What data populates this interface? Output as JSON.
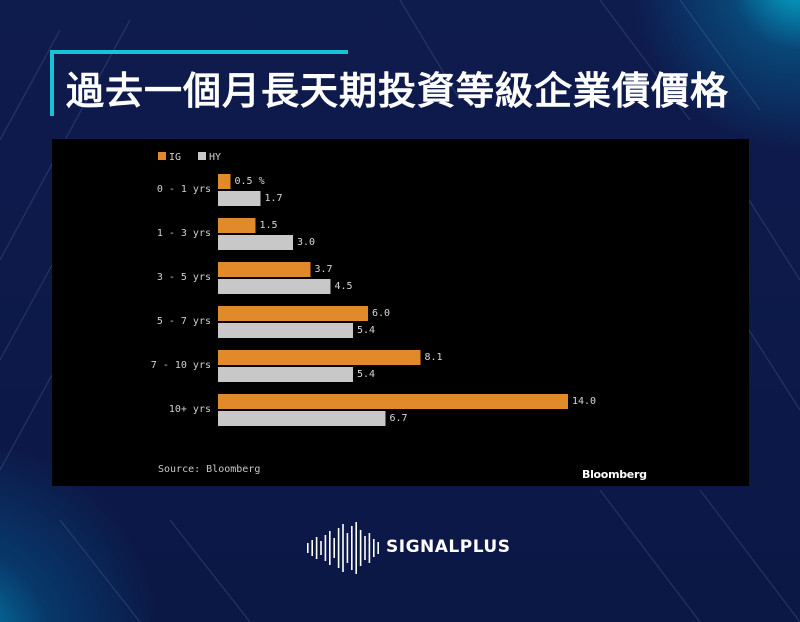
{
  "title": "過去一個月長天期投資等級企業債價格",
  "chart_data": {
    "type": "bar",
    "orientation": "horizontal",
    "categories": [
      "0 - 1 yrs",
      "1 - 3 yrs",
      "3 - 5 yrs",
      "5 - 7 yrs",
      "7 - 10 yrs",
      "10+ yrs"
    ],
    "series": [
      {
        "name": "IG",
        "color": "#e08a2c",
        "values": [
          0.5,
          1.5,
          3.7,
          6.0,
          8.1,
          14.0
        ],
        "labels": [
          "0.5 %",
          "1.5",
          "3.7",
          "6.0",
          "8.1",
          "14.0"
        ]
      },
      {
        "name": "HY",
        "color": "#c8c8c8",
        "values": [
          1.7,
          3.0,
          4.5,
          5.4,
          5.4,
          6.7
        ],
        "labels": [
          "1.7",
          "3.0",
          "4.5",
          "5.4",
          "5.4",
          "6.7"
        ]
      }
    ],
    "xlim": [
      0,
      14.0
    ],
    "grid": false,
    "legend_position": "top-left",
    "source": "Source: Bloomberg",
    "publisher": "Bloomberg"
  },
  "brand": {
    "name": "SIGNALPLUS"
  }
}
